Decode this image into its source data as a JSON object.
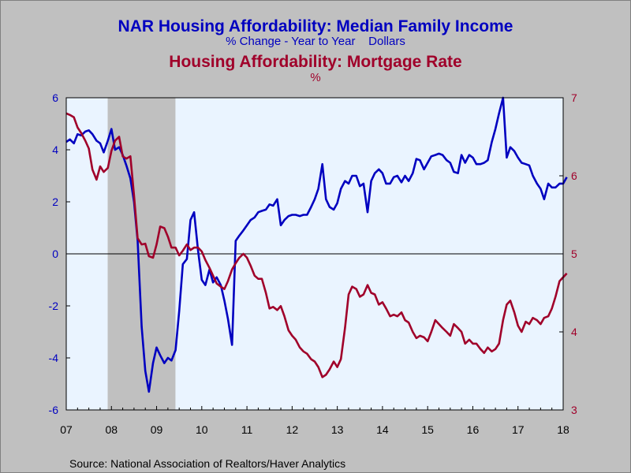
{
  "chart_data": {
    "type": "line",
    "title": "NAR Housing Affordability: Median Family Income",
    "subtitle": "% Change - Year to Year    Dollars",
    "title2": "Housing Affordability: Mortgage Rate",
    "subtitle2": "%",
    "source": "Source:  National Association of Realtors/Haver Analytics",
    "colors": {
      "left_series": "#0000c0",
      "right_series": "#a0002a",
      "plot_bg": "#eaf4ff",
      "recession": "#c0c0c0"
    },
    "x_tick_labels": [
      "07",
      "08",
      "09",
      "10",
      "11",
      "12",
      "13",
      "14",
      "15",
      "16",
      "17",
      "18"
    ],
    "x_range": [
      2007.0,
      2018.0
    ],
    "left_axis": {
      "range": [
        -6,
        6
      ],
      "ticks": [
        "-6",
        "-4",
        "-2",
        "0",
        "2",
        "4",
        "6"
      ]
    },
    "right_axis": {
      "range": [
        3,
        7
      ],
      "ticks": [
        "3",
        "4",
        "5",
        "6",
        "7"
      ]
    },
    "recession_shading": [
      2007.917,
      2009.417
    ],
    "grid": false,
    "legend": "none",
    "series": [
      {
        "axis": "left",
        "points": [
          [
            2007.0,
            4.3
          ],
          [
            2007.08,
            4.4
          ],
          [
            2007.17,
            4.25
          ],
          [
            2007.25,
            4.6
          ],
          [
            2007.33,
            4.55
          ],
          [
            2007.42,
            4.7
          ],
          [
            2007.5,
            4.75
          ],
          [
            2007.58,
            4.6
          ],
          [
            2007.67,
            4.35
          ],
          [
            2007.75,
            4.25
          ],
          [
            2007.83,
            3.9
          ],
          [
            2007.92,
            4.35
          ],
          [
            2008.0,
            4.8
          ],
          [
            2008.08,
            4.0
          ],
          [
            2008.17,
            4.1
          ],
          [
            2008.25,
            3.8
          ],
          [
            2008.33,
            3.4
          ],
          [
            2008.42,
            2.9
          ],
          [
            2008.5,
            2.0
          ],
          [
            2008.58,
            0.5
          ],
          [
            2008.67,
            -2.8
          ],
          [
            2008.75,
            -4.5
          ],
          [
            2008.83,
            -5.3
          ],
          [
            2008.92,
            -4.2
          ],
          [
            2009.0,
            -3.6
          ],
          [
            2009.08,
            -3.9
          ],
          [
            2009.17,
            -4.2
          ],
          [
            2009.25,
            -4.0
          ],
          [
            2009.33,
            -4.1
          ],
          [
            2009.42,
            -3.7
          ],
          [
            2009.5,
            -2.2
          ],
          [
            2009.58,
            -0.4
          ],
          [
            2009.67,
            -0.2
          ],
          [
            2009.75,
            1.3
          ],
          [
            2009.83,
            1.6
          ],
          [
            2009.92,
            0.1
          ],
          [
            2010.0,
            -1.0
          ],
          [
            2010.08,
            -1.2
          ],
          [
            2010.17,
            -0.6
          ],
          [
            2010.25,
            -1.1
          ],
          [
            2010.33,
            -0.9
          ],
          [
            2010.42,
            -1.2
          ],
          [
            2010.5,
            -1.8
          ],
          [
            2010.58,
            -2.5
          ],
          [
            2010.67,
            -3.5
          ],
          [
            2010.75,
            0.5
          ],
          [
            2010.83,
            0.7
          ],
          [
            2010.92,
            0.9
          ],
          [
            2011.0,
            1.1
          ],
          [
            2011.08,
            1.3
          ],
          [
            2011.17,
            1.4
          ],
          [
            2011.25,
            1.6
          ],
          [
            2011.33,
            1.65
          ],
          [
            2011.42,
            1.7
          ],
          [
            2011.5,
            1.9
          ],
          [
            2011.58,
            1.85
          ],
          [
            2011.67,
            2.1
          ],
          [
            2011.75,
            1.1
          ],
          [
            2011.83,
            1.3
          ],
          [
            2011.92,
            1.45
          ],
          [
            2012.0,
            1.5
          ],
          [
            2012.08,
            1.5
          ],
          [
            2012.17,
            1.45
          ],
          [
            2012.25,
            1.5
          ],
          [
            2012.33,
            1.5
          ],
          [
            2012.42,
            1.8
          ],
          [
            2012.5,
            2.1
          ],
          [
            2012.58,
            2.5
          ],
          [
            2012.67,
            3.45
          ],
          [
            2012.75,
            2.1
          ],
          [
            2012.83,
            1.8
          ],
          [
            2012.92,
            1.7
          ],
          [
            2013.0,
            1.95
          ],
          [
            2013.08,
            2.5
          ],
          [
            2013.17,
            2.8
          ],
          [
            2013.25,
            2.7
          ],
          [
            2013.33,
            3.0
          ],
          [
            2013.42,
            3.0
          ],
          [
            2013.5,
            2.6
          ],
          [
            2013.58,
            2.7
          ],
          [
            2013.67,
            1.6
          ],
          [
            2013.75,
            2.8
          ],
          [
            2013.83,
            3.1
          ],
          [
            2013.92,
            3.25
          ],
          [
            2014.0,
            3.1
          ],
          [
            2014.08,
            2.7
          ],
          [
            2014.17,
            2.7
          ],
          [
            2014.25,
            2.95
          ],
          [
            2014.33,
            3.0
          ],
          [
            2014.42,
            2.75
          ],
          [
            2014.5,
            3.0
          ],
          [
            2014.58,
            2.8
          ],
          [
            2014.67,
            3.1
          ],
          [
            2014.75,
            3.65
          ],
          [
            2014.83,
            3.6
          ],
          [
            2014.92,
            3.25
          ],
          [
            2015.0,
            3.5
          ],
          [
            2015.08,
            3.75
          ],
          [
            2015.17,
            3.8
          ],
          [
            2015.25,
            3.85
          ],
          [
            2015.33,
            3.8
          ],
          [
            2015.42,
            3.6
          ],
          [
            2015.5,
            3.5
          ],
          [
            2015.58,
            3.15
          ],
          [
            2015.67,
            3.1
          ],
          [
            2015.75,
            3.8
          ],
          [
            2015.83,
            3.5
          ],
          [
            2015.92,
            3.8
          ],
          [
            2016.0,
            3.7
          ],
          [
            2016.08,
            3.45
          ],
          [
            2016.17,
            3.45
          ],
          [
            2016.25,
            3.5
          ],
          [
            2016.33,
            3.6
          ],
          [
            2016.42,
            4.3
          ],
          [
            2016.5,
            4.8
          ],
          [
            2016.58,
            5.4
          ],
          [
            2016.67,
            6.0
          ],
          [
            2016.75,
            3.7
          ],
          [
            2016.83,
            4.1
          ],
          [
            2016.92,
            3.95
          ],
          [
            2017.0,
            3.7
          ],
          [
            2017.08,
            3.5
          ],
          [
            2017.17,
            3.45
          ],
          [
            2017.25,
            3.4
          ],
          [
            2017.33,
            3.0
          ],
          [
            2017.42,
            2.7
          ],
          [
            2017.5,
            2.5
          ],
          [
            2017.58,
            2.1
          ],
          [
            2017.67,
            2.7
          ],
          [
            2017.75,
            2.55
          ],
          [
            2017.83,
            2.55
          ],
          [
            2017.92,
            2.7
          ],
          [
            2018.0,
            2.7
          ],
          [
            2018.08,
            2.95
          ]
        ]
      },
      {
        "axis": "right",
        "points": [
          [
            2007.0,
            6.8
          ],
          [
            2007.08,
            6.78
          ],
          [
            2007.17,
            6.75
          ],
          [
            2007.25,
            6.62
          ],
          [
            2007.33,
            6.55
          ],
          [
            2007.42,
            6.45
          ],
          [
            2007.5,
            6.35
          ],
          [
            2007.58,
            6.08
          ],
          [
            2007.67,
            5.95
          ],
          [
            2007.75,
            6.12
          ],
          [
            2007.83,
            6.05
          ],
          [
            2007.92,
            6.1
          ],
          [
            2008.0,
            6.32
          ],
          [
            2008.08,
            6.45
          ],
          [
            2008.17,
            6.5
          ],
          [
            2008.25,
            6.25
          ],
          [
            2008.33,
            6.22
          ],
          [
            2008.42,
            6.25
          ],
          [
            2008.5,
            5.75
          ],
          [
            2008.58,
            5.2
          ],
          [
            2008.67,
            5.12
          ],
          [
            2008.75,
            5.13
          ],
          [
            2008.83,
            4.97
          ],
          [
            2008.92,
            4.95
          ],
          [
            2009.0,
            5.12
          ],
          [
            2009.08,
            5.35
          ],
          [
            2009.17,
            5.33
          ],
          [
            2009.25,
            5.22
          ],
          [
            2009.33,
            5.08
          ],
          [
            2009.42,
            5.08
          ],
          [
            2009.5,
            4.98
          ],
          [
            2009.58,
            5.04
          ],
          [
            2009.67,
            5.12
          ],
          [
            2009.75,
            5.05
          ],
          [
            2009.83,
            5.08
          ],
          [
            2009.92,
            5.08
          ],
          [
            2010.0,
            5.03
          ],
          [
            2010.08,
            4.92
          ],
          [
            2010.17,
            4.82
          ],
          [
            2010.25,
            4.72
          ],
          [
            2010.33,
            4.62
          ],
          [
            2010.42,
            4.58
          ],
          [
            2010.5,
            4.55
          ],
          [
            2010.58,
            4.65
          ],
          [
            2010.67,
            4.8
          ],
          [
            2010.75,
            4.88
          ],
          [
            2010.83,
            4.95
          ],
          [
            2010.92,
            5.0
          ],
          [
            2011.0,
            4.95
          ],
          [
            2011.08,
            4.85
          ],
          [
            2011.17,
            4.72
          ],
          [
            2011.25,
            4.68
          ],
          [
            2011.33,
            4.68
          ],
          [
            2011.42,
            4.5
          ],
          [
            2011.5,
            4.3
          ],
          [
            2011.58,
            4.32
          ],
          [
            2011.67,
            4.28
          ],
          [
            2011.75,
            4.33
          ],
          [
            2011.83,
            4.2
          ],
          [
            2011.92,
            4.02
          ],
          [
            2012.0,
            3.95
          ],
          [
            2012.08,
            3.9
          ],
          [
            2012.17,
            3.8
          ],
          [
            2012.25,
            3.75
          ],
          [
            2012.33,
            3.72
          ],
          [
            2012.42,
            3.65
          ],
          [
            2012.5,
            3.62
          ],
          [
            2012.58,
            3.55
          ],
          [
            2012.67,
            3.42
          ],
          [
            2012.75,
            3.45
          ],
          [
            2012.83,
            3.52
          ],
          [
            2012.92,
            3.62
          ],
          [
            2013.0,
            3.55
          ],
          [
            2013.08,
            3.65
          ],
          [
            2013.17,
            4.05
          ],
          [
            2013.25,
            4.48
          ],
          [
            2013.33,
            4.58
          ],
          [
            2013.42,
            4.55
          ],
          [
            2013.5,
            4.45
          ],
          [
            2013.58,
            4.48
          ],
          [
            2013.67,
            4.6
          ],
          [
            2013.75,
            4.5
          ],
          [
            2013.83,
            4.48
          ],
          [
            2013.92,
            4.35
          ],
          [
            2014.0,
            4.38
          ],
          [
            2014.08,
            4.3
          ],
          [
            2014.17,
            4.2
          ],
          [
            2014.25,
            4.22
          ],
          [
            2014.33,
            4.2
          ],
          [
            2014.42,
            4.25
          ],
          [
            2014.5,
            4.15
          ],
          [
            2014.58,
            4.12
          ],
          [
            2014.67,
            4.0
          ],
          [
            2014.75,
            3.92
          ],
          [
            2014.83,
            3.95
          ],
          [
            2014.92,
            3.93
          ],
          [
            2015.0,
            3.88
          ],
          [
            2015.08,
            4.0
          ],
          [
            2015.17,
            4.15
          ],
          [
            2015.25,
            4.1
          ],
          [
            2015.33,
            4.05
          ],
          [
            2015.42,
            4.0
          ],
          [
            2015.5,
            3.95
          ],
          [
            2015.58,
            4.1
          ],
          [
            2015.67,
            4.05
          ],
          [
            2015.75,
            4.0
          ],
          [
            2015.83,
            3.85
          ],
          [
            2015.92,
            3.9
          ],
          [
            2016.0,
            3.85
          ],
          [
            2016.08,
            3.85
          ],
          [
            2016.17,
            3.78
          ],
          [
            2016.25,
            3.73
          ],
          [
            2016.33,
            3.8
          ],
          [
            2016.42,
            3.75
          ],
          [
            2016.5,
            3.78
          ],
          [
            2016.58,
            3.85
          ],
          [
            2016.67,
            4.15
          ],
          [
            2016.75,
            4.35
          ],
          [
            2016.83,
            4.4
          ],
          [
            2016.92,
            4.25
          ],
          [
            2017.0,
            4.08
          ],
          [
            2017.08,
            4.0
          ],
          [
            2017.17,
            4.13
          ],
          [
            2017.25,
            4.1
          ],
          [
            2017.33,
            4.18
          ],
          [
            2017.42,
            4.15
          ],
          [
            2017.5,
            4.1
          ],
          [
            2017.58,
            4.18
          ],
          [
            2017.67,
            4.2
          ],
          [
            2017.75,
            4.3
          ],
          [
            2017.83,
            4.45
          ],
          [
            2017.92,
            4.65
          ],
          [
            2018.0,
            4.7
          ],
          [
            2018.08,
            4.75
          ]
        ]
      }
    ]
  }
}
